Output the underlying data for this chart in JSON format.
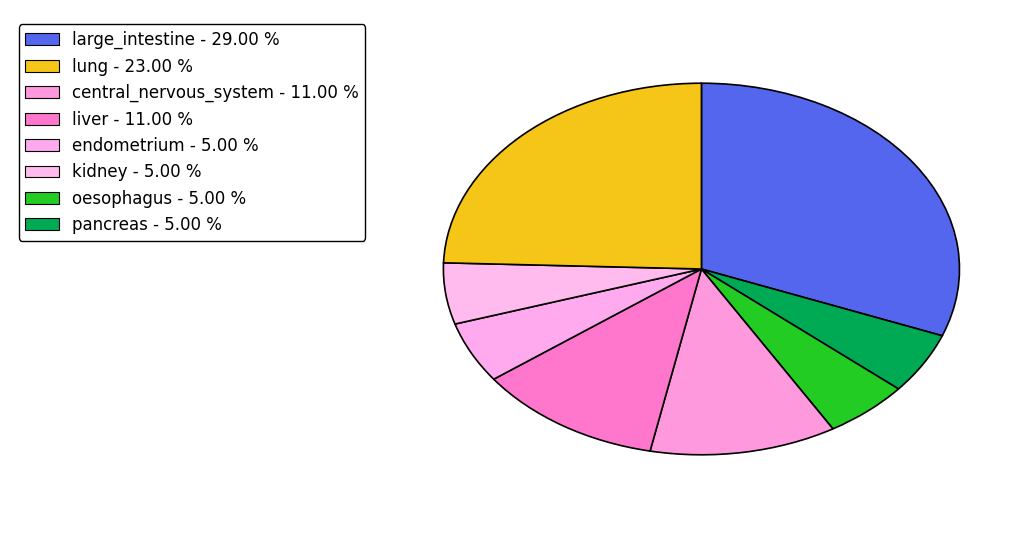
{
  "labels": [
    "large_intestine",
    "pancreas",
    "oesophagus",
    "central_nervous_system",
    "liver",
    "endometrium",
    "kidney",
    "lung"
  ],
  "values": [
    29,
    5,
    5,
    11,
    11,
    5,
    5,
    23
  ],
  "colors": [
    "#5566ee",
    "#00aa55",
    "#22cc22",
    "#ff99dd",
    "#ff77cc",
    "#ffaaee",
    "#ffbbee",
    "#f5c518"
  ],
  "legend_labels": [
    "large_intestine - 29.00 %",
    "lung - 23.00 %",
    "central_nervous_system - 11.00 %",
    "liver - 11.00 %",
    "endometrium - 5.00 %",
    "kidney - 5.00 %",
    "oesophagus - 5.00 %",
    "pancreas - 5.00 %"
  ],
  "legend_colors": [
    "#5566ee",
    "#f5c518",
    "#ff99dd",
    "#ff77cc",
    "#ffaaee",
    "#ffbbee",
    "#22cc22",
    "#00aa55"
  ],
  "background_color": "#ffffff",
  "legend_fontsize": 12,
  "startangle": 90,
  "aspect_ratio": 0.72
}
